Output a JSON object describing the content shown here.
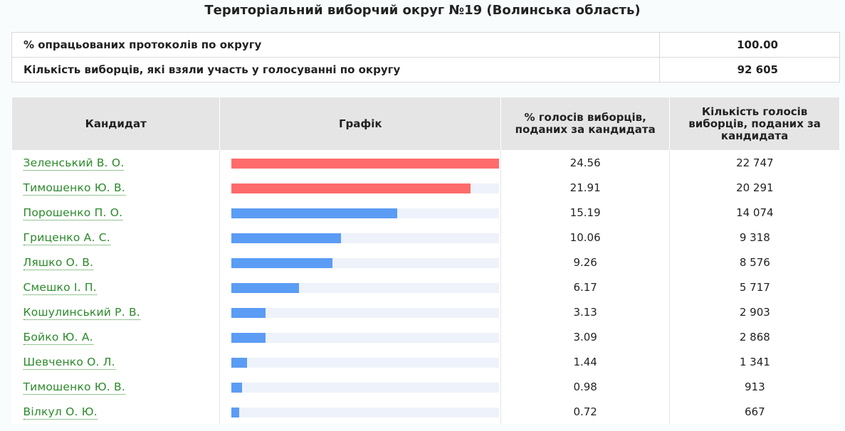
{
  "title": "Територіальний виборчий округ №19 (Волинська область)",
  "summary": [
    {
      "label": "% опрацьованих протоколів по округу",
      "value": "100.00"
    },
    {
      "label": "Кількість виборців, які взяли участь у голосуванні по округу",
      "value": "92 605"
    }
  ],
  "headers": {
    "candidate": "Кандидат",
    "graph": "Графік",
    "percent": "% голосів виборців, поданих за кандидата",
    "count": "Кількість голосів виборців, поданих за кандидата"
  },
  "colors": {
    "leader": "#ff6b6b",
    "other": "#5b9cf5",
    "track": "#eef2fa"
  },
  "chart_data": {
    "type": "bar",
    "title": "Графік",
    "categories": [
      "Зеленський В. О.",
      "Тимошенко Ю. В.",
      "Порошенко П. О.",
      "Гриценко А. С.",
      "Ляшко О. В.",
      "Смешко І. П.",
      "Кошулинський Р. В.",
      "Бойко Ю. А.",
      "Шевченко О. Л.",
      "Тимошенко Ю. В.",
      "Вілкул О. Ю."
    ],
    "series": [
      {
        "values": [
          24.56,
          21.91,
          15.19,
          10.06,
          9.26,
          6.17,
          3.13,
          3.09,
          1.44,
          0.98,
          0.72
        ]
      }
    ],
    "counts": [
      "22 747",
      "20 291",
      "14 074",
      "9 318",
      "8 576",
      "5 717",
      "2 903",
      "2 868",
      "1 341",
      "913",
      "667"
    ],
    "percent_labels": [
      "24.56",
      "21.91",
      "15.19",
      "10.06",
      "9.26",
      "6.17",
      "3.13",
      "3.09",
      "1.44",
      "0.98",
      "0.72"
    ],
    "bar_colors": [
      "leader",
      "leader",
      "other",
      "other",
      "other",
      "other",
      "other",
      "other",
      "other",
      "other",
      "other"
    ],
    "xlim": [
      0,
      24.56
    ]
  }
}
